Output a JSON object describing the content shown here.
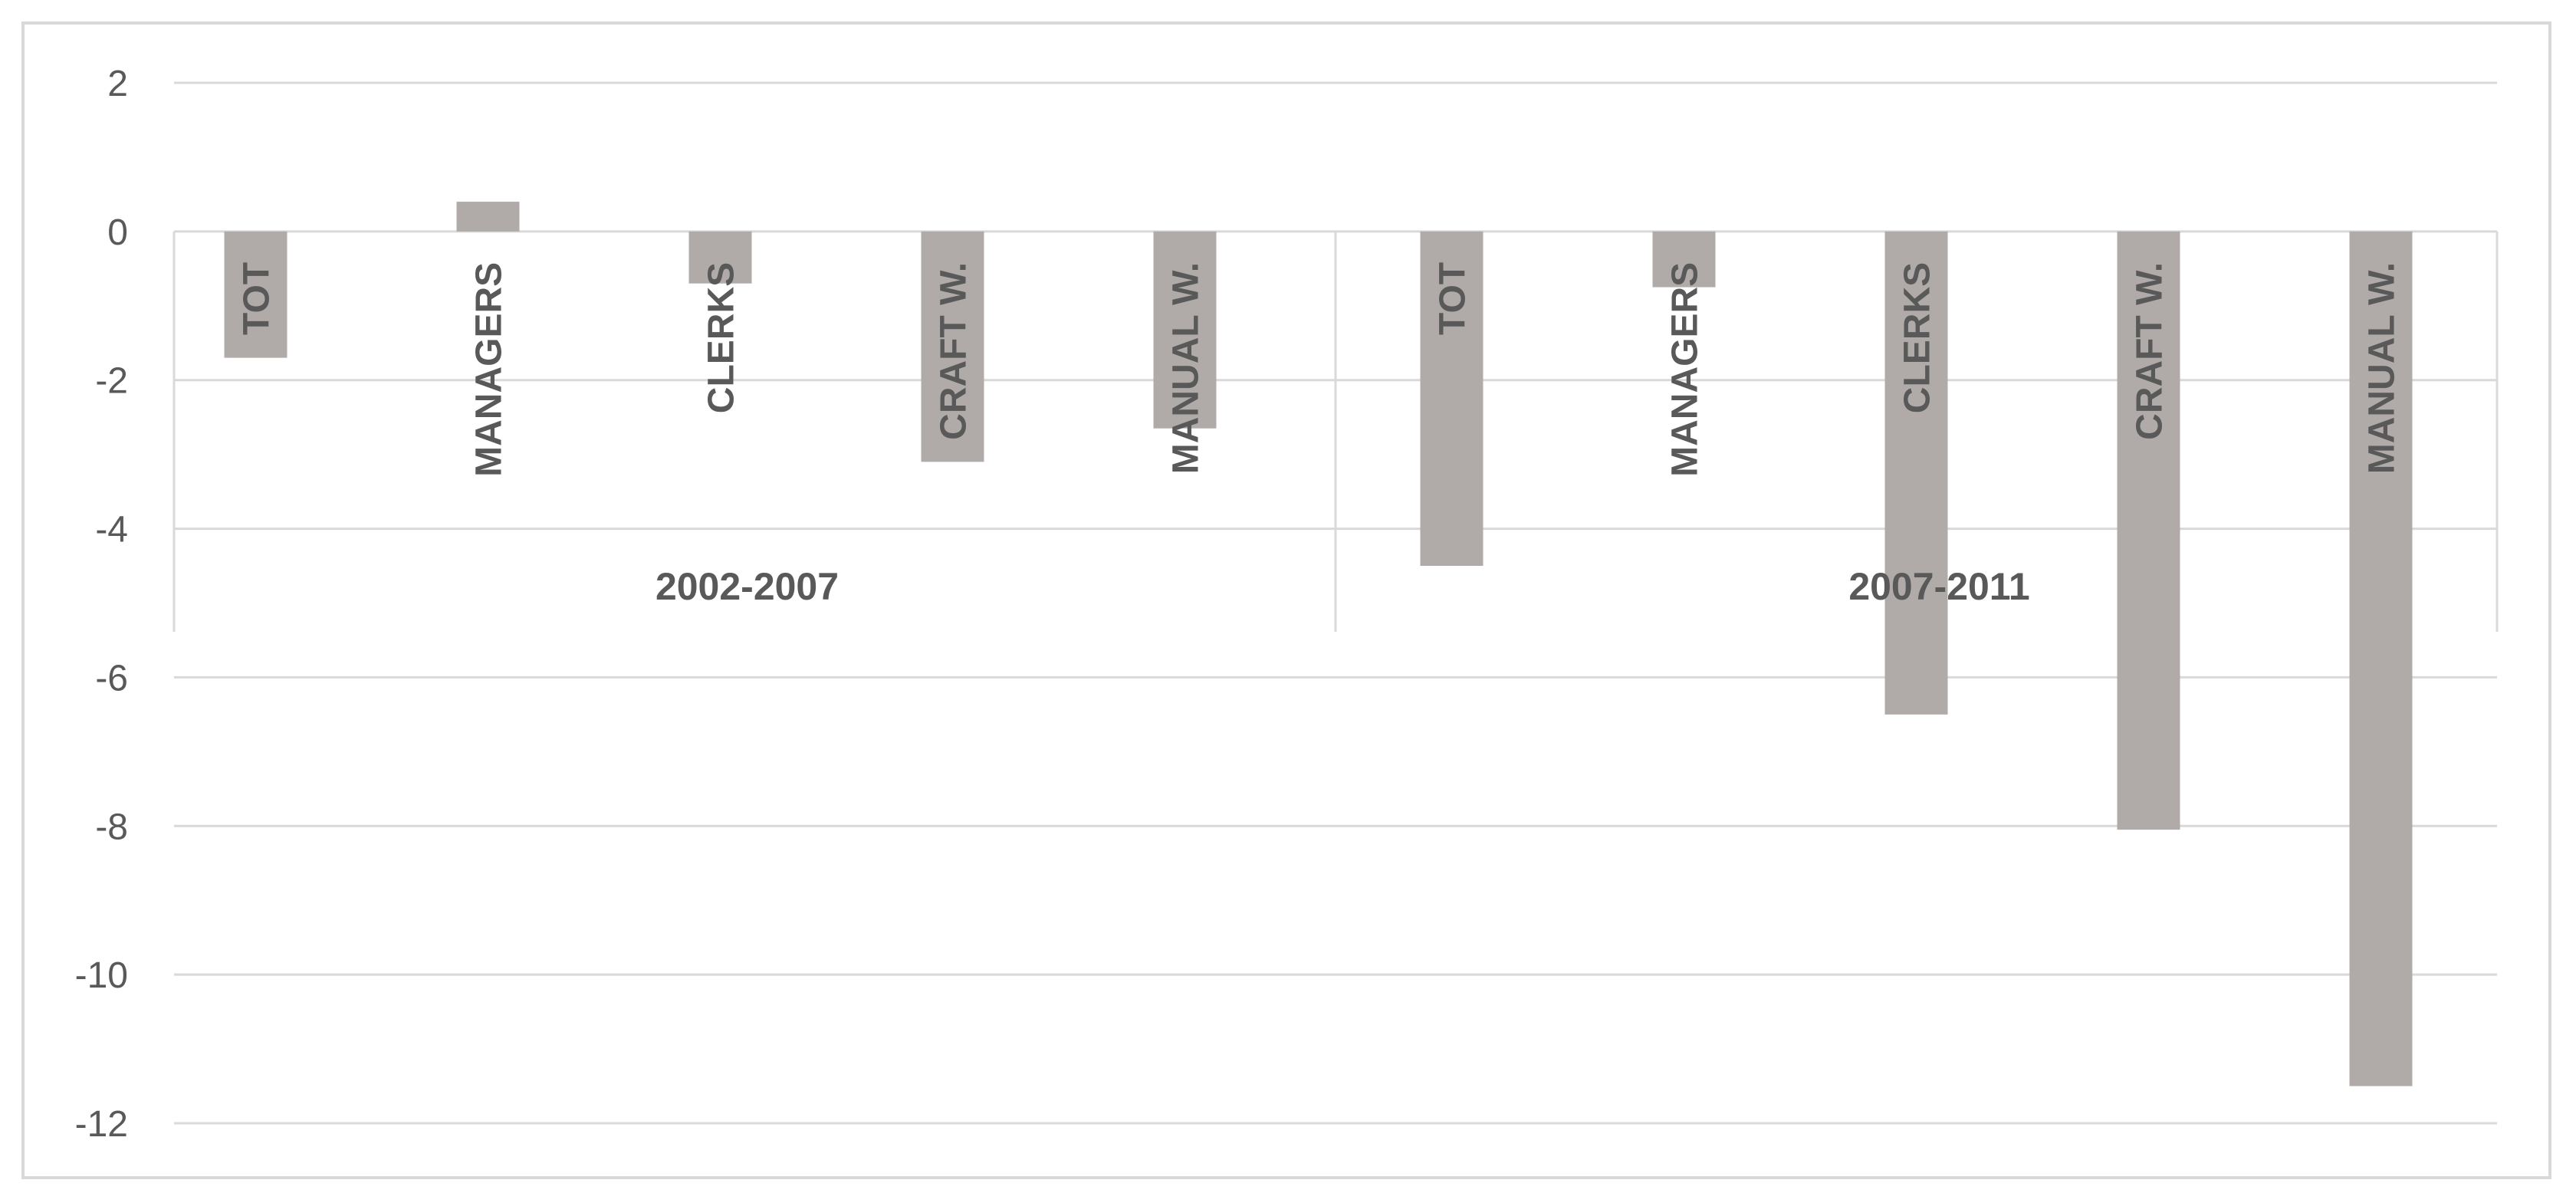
{
  "chart_data": {
    "type": "bar",
    "title": "",
    "xlabel": "",
    "ylabel": "",
    "ylim": [
      -12,
      2
    ],
    "yticks": [
      2,
      0,
      -2,
      -4,
      -6,
      -8,
      -10,
      -12
    ],
    "grid": true,
    "legend": "none",
    "bar_color": "#b0aba9",
    "gridline_color": "#d9d9d9",
    "groups": [
      {
        "label": "2002-2007",
        "categories": [
          "TOT",
          "MANAGERS",
          "CLERKS",
          "CRAFT W.",
          "MANUAL W."
        ],
        "values": [
          -1.7,
          0.4,
          -0.7,
          -3.1,
          -2.65
        ]
      },
      {
        "label": "2007-2011",
        "categories": [
          "TOT",
          "MANAGERS",
          "CLERKS",
          "CRAFT W.",
          "MANUAL W."
        ],
        "values": [
          -4.5,
          -0.75,
          -6.5,
          -8.05,
          -11.5
        ]
      }
    ]
  }
}
